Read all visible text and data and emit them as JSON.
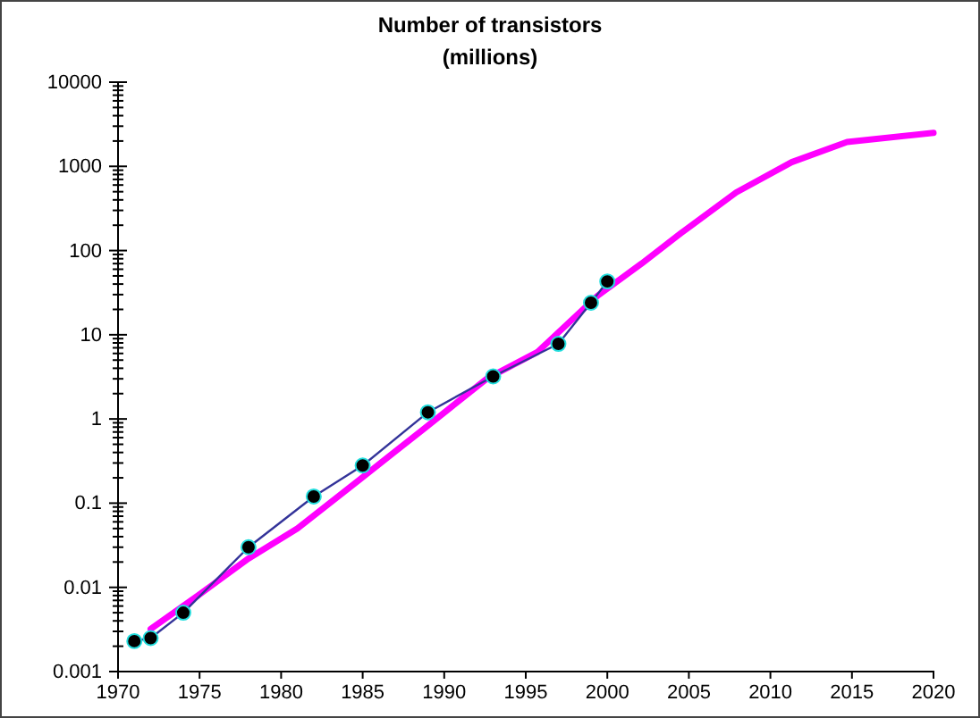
{
  "chart_data": {
    "type": "line",
    "title": "Number of transistors",
    "subtitle": "(millions)",
    "log": "y",
    "grid": false,
    "marker": "circle",
    "xlim": [
      1970,
      2020
    ],
    "xticks": [
      1970,
      1975,
      1980,
      1985,
      1990,
      1995,
      2000,
      2005,
      2010,
      2015,
      2020
    ],
    "ylim": [
      0.001,
      10000
    ],
    "yticks": [
      0.001,
      {
        "value": 0.002,
        "label": null
      },
      {
        "value": 0.003,
        "label": null
      },
      {
        "value": 0.004,
        "label": null
      },
      {
        "value": 0.005,
        "label": null
      },
      {
        "value": 0.006,
        "label": null
      },
      {
        "value": 0.007,
        "label": null
      },
      {
        "value": 0.008,
        "label": null
      },
      {
        "value": 0.009,
        "label": null
      },
      0.01,
      {
        "value": 0.02,
        "label": null
      },
      {
        "value": 0.03,
        "label": null
      },
      {
        "value": 0.04,
        "label": null
      },
      {
        "value": 0.05,
        "label": null
      },
      {
        "value": 0.06,
        "label": null
      },
      {
        "value": 0.07,
        "label": null
      },
      {
        "value": 0.08,
        "label": null
      },
      {
        "value": 0.09,
        "label": null
      },
      0.1,
      {
        "value": 0.2,
        "label": null
      },
      {
        "value": 0.3,
        "label": null
      },
      {
        "value": 0.4,
        "label": null
      },
      {
        "value": 0.5,
        "label": null
      },
      {
        "value": 0.6,
        "label": null
      },
      {
        "value": 0.7,
        "label": null
      },
      {
        "value": 0.8,
        "label": null
      },
      {
        "value": 0.9,
        "label": null
      },
      1,
      {
        "value": 2,
        "label": null
      },
      {
        "value": 3,
        "label": null
      },
      {
        "value": 4,
        "label": null
      },
      {
        "value": 5,
        "label": null
      },
      {
        "value": 6,
        "label": null
      },
      {
        "value": 7,
        "label": null
      },
      {
        "value": 8,
        "label": null
      },
      {
        "value": 9,
        "label": null
      },
      10,
      {
        "value": 20,
        "label": null
      },
      {
        "value": 30,
        "label": null
      },
      {
        "value": 40,
        "label": null
      },
      {
        "value": 50,
        "label": null
      },
      {
        "value": 60,
        "label": null
      },
      {
        "value": 70,
        "label": null
      },
      {
        "value": 80,
        "label": null
      },
      {
        "value": 90,
        "label": null
      },
      100,
      {
        "value": 200,
        "label": null
      },
      {
        "value": 300,
        "label": null
      },
      {
        "value": 400,
        "label": null
      },
      {
        "value": 500,
        "label": null
      },
      {
        "value": 600,
        "label": null
      },
      {
        "value": 700,
        "label": null
      },
      {
        "value": 800,
        "label": null
      },
      {
        "value": 900,
        "label": null
      },
      1000,
      {
        "value": 2000,
        "label": null
      },
      {
        "value": 3000,
        "label": null
      },
      {
        "value": 4000,
        "label": null
      },
      {
        "value": 5000,
        "label": null
      },
      {
        "value": 6000,
        "label": null
      },
      {
        "value": 7000,
        "label": null
      },
      {
        "value": 8000,
        "label": null
      },
      {
        "value": 9000,
        "label": null
      },
      10000
    ],
    "series": [
      {
        "color": "#ff00ff",
        "marker": "none",
        "x": [
          1972,
          1974.9,
          1978,
          1981,
          1984.8,
          1988.7,
          1992.6,
          1995.7,
          1999.4,
          2002.1,
          2004.5,
          2007.9,
          2011.3,
          2014.7,
          2020
        ],
        "values": [
          0.0032,
          0.008,
          0.022,
          0.05,
          0.19,
          0.75,
          3.0,
          6.2,
          29,
          70,
          160,
          490,
          1120,
          1950,
          2500
        ]
      },
      {
        "color": "#333399",
        "x": [
          1971,
          1972,
          1974,
          1978,
          1982,
          1985,
          1989,
          1993,
          1997,
          1999,
          2000
        ],
        "values": [
          0.0023,
          0.0025,
          0.005,
          0.03,
          0.12,
          0.28,
          1.2,
          3.2,
          7.8,
          24,
          43
        ]
      }
    ]
  }
}
